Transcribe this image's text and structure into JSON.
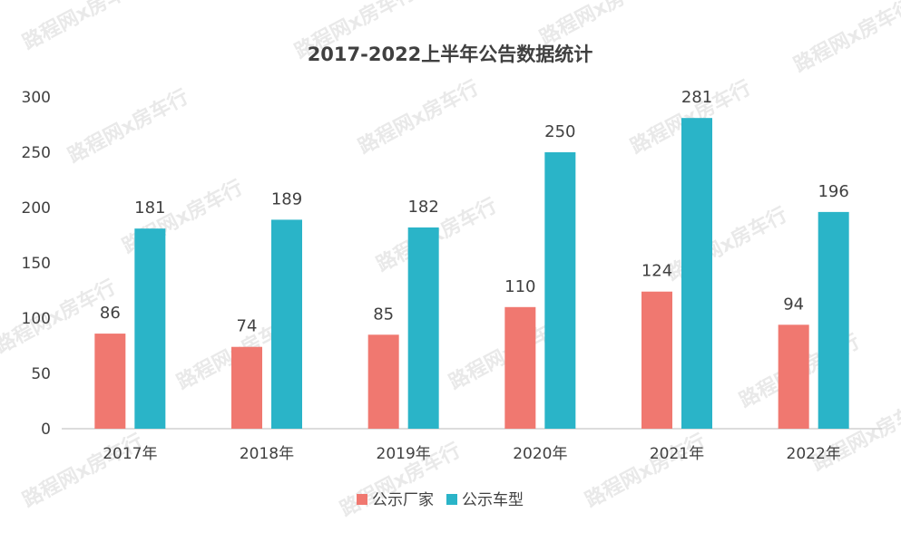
{
  "chart_data": {
    "type": "bar",
    "title": "2017-2022上半年公告数据统计",
    "categories": [
      "2017年",
      "2018年",
      "2019年",
      "2020年",
      "2021年",
      "2022年"
    ],
    "series": [
      {
        "name": "公示厂家",
        "color": "#f07870",
        "values": [
          86,
          74,
          85,
          110,
          124,
          94
        ]
      },
      {
        "name": "公示车型",
        "color": "#2ab4c8",
        "values": [
          181,
          189,
          182,
          250,
          281,
          196
        ]
      }
    ],
    "ylim": [
      0,
      300
    ],
    "yticks": [
      0,
      50,
      100,
      150,
      200,
      250,
      300
    ],
    "grid": false,
    "legend": "bottom",
    "watermark_text": "路程网x房车行"
  }
}
